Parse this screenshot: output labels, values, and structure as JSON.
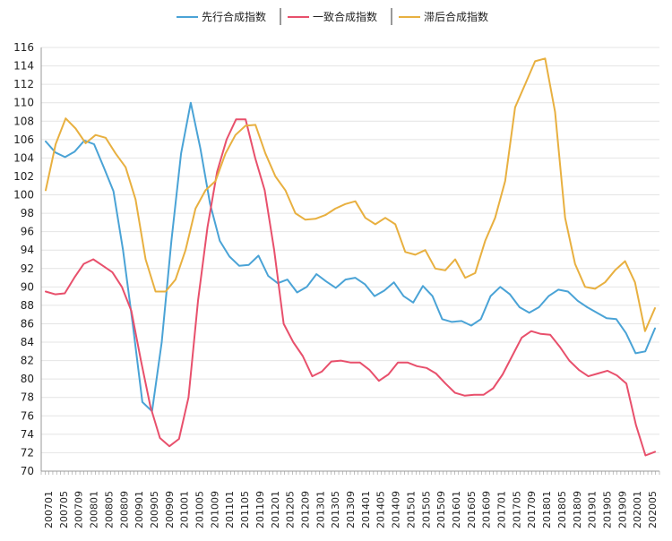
{
  "chart_data": {
    "type": "line",
    "title": "",
    "xlabel": "",
    "ylabel": "",
    "ylim": [
      70,
      116
    ],
    "yticks": [
      70,
      72,
      74,
      76,
      78,
      80,
      82,
      84,
      86,
      88,
      90,
      92,
      94,
      96,
      98,
      100,
      102,
      104,
      106,
      108,
      110,
      112,
      114,
      116
    ],
    "x_tick_labels": [
      "200701",
      "200705",
      "200709",
      "200801",
      "200805",
      "200809",
      "200901",
      "200905",
      "200909",
      "201001",
      "201005",
      "201009",
      "201101",
      "201105",
      "201109",
      "201201",
      "201205",
      "201209",
      "201301",
      "201305",
      "201309",
      "201401",
      "201405",
      "201409",
      "201501",
      "201505",
      "201509",
      "201601",
      "201605",
      "201609",
      "201701",
      "201705",
      "201709",
      "201801",
      "201805",
      "201809",
      "201901",
      "201905",
      "201909",
      "202001",
      "202005"
    ],
    "grid": "horizontal",
    "legend_position": "top",
    "series": [
      {
        "name": "先行合成指数",
        "color": "#4aa3d6",
        "values": [
          105.8,
          104.6,
          104.1,
          104.7,
          105.9,
          105.5,
          103.0,
          100.4,
          94.0,
          86.0,
          77.5,
          76.5,
          84.0,
          95.0,
          104.5,
          110.0,
          105.0,
          99.0,
          95.0,
          93.3,
          92.3,
          92.4,
          93.4,
          91.2,
          90.4,
          90.8,
          89.4,
          90.0,
          91.4,
          90.6,
          89.9,
          90.8,
          91.0,
          90.3,
          89.0,
          89.6,
          90.5,
          89.0,
          88.3,
          90.1,
          89.0,
          86.5,
          86.2,
          86.3,
          85.8,
          86.5,
          89.0,
          90.0,
          89.2,
          87.8,
          87.2,
          87.8,
          89.0,
          89.7,
          89.5,
          88.5,
          87.8,
          87.2,
          86.6,
          86.5,
          85.0,
          82.8,
          83.0,
          85.5
        ]
      },
      {
        "name": "一致合成指数",
        "color": "#e8506c",
        "values": [
          89.5,
          89.2,
          89.3,
          91.0,
          92.5,
          93.0,
          92.3,
          91.6,
          90.0,
          87.4,
          82.0,
          77.0,
          73.6,
          72.7,
          73.5,
          78.0,
          88.5,
          96.5,
          102.5,
          106.0,
          108.2,
          108.2,
          104.0,
          100.5,
          94.0,
          86.0,
          84.0,
          82.5,
          80.3,
          80.8,
          81.9,
          82.0,
          81.8,
          81.8,
          81.0,
          79.8,
          80.5,
          81.8,
          81.8,
          81.4,
          81.2,
          80.6,
          79.5,
          78.5,
          78.2,
          78.3,
          78.3,
          79.0,
          80.5,
          82.5,
          84.5,
          85.2,
          84.9,
          84.8,
          83.5,
          82.0,
          81.0,
          80.3,
          80.6,
          80.9,
          80.4,
          79.5,
          75.0,
          71.7,
          72.1
        ]
      },
      {
        "name": "滞后合成指数",
        "color": "#e8b040",
        "values": [
          100.5,
          105.5,
          108.3,
          107.2,
          105.6,
          106.5,
          106.2,
          104.5,
          103.0,
          99.5,
          93.0,
          89.5,
          89.5,
          90.8,
          94.0,
          98.5,
          100.5,
          101.5,
          104.5,
          106.5,
          107.5,
          107.6,
          104.5,
          102.0,
          100.5,
          98.0,
          97.3,
          97.4,
          97.8,
          98.5,
          99.0,
          99.3,
          97.5,
          96.8,
          97.5,
          96.8,
          93.8,
          93.5,
          94.0,
          92.0,
          91.8,
          93.0,
          91.0,
          91.5,
          95.0,
          97.5,
          101.5,
          109.5,
          112.0,
          114.5,
          114.8,
          109.0,
          97.5,
          92.5,
          90.0,
          89.8,
          90.5,
          91.8,
          92.8,
          90.5,
          85.2,
          87.7
        ]
      }
    ]
  }
}
